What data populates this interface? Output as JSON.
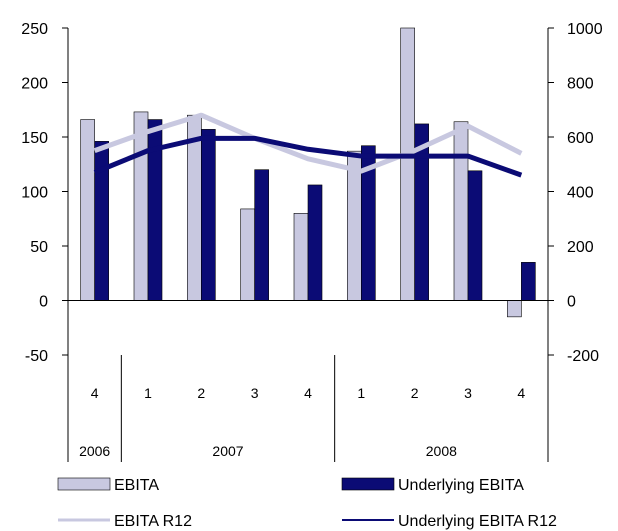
{
  "chart_data": {
    "type": "bar",
    "title": "",
    "xlabel": "",
    "ylabel": "",
    "categories": [
      "4",
      "1",
      "2",
      "3",
      "4",
      "1",
      "2",
      "3",
      "4"
    ],
    "year_groups": [
      {
        "label": "2006",
        "span": 1
      },
      {
        "label": "2007",
        "span": 4
      },
      {
        "label": "2008",
        "span": 4
      }
    ],
    "ylim_left": [
      -50,
      250
    ],
    "left_ticks": [
      250,
      200,
      150,
      100,
      50,
      0,
      -50
    ],
    "ylim_right": [
      -200,
      1000
    ],
    "right_ticks": [
      1000,
      800,
      600,
      400,
      200,
      0,
      -200
    ],
    "grid": false,
    "legend_position": "bottom",
    "series": [
      {
        "name": "EBITA",
        "type": "bar",
        "axis": "left",
        "color": "#c8c8e0",
        "values": [
          166,
          173,
          170,
          84,
          80,
          137,
          250,
          164,
          -15
        ]
      },
      {
        "name": "Underlying EBITA",
        "type": "bar",
        "axis": "left",
        "color": "#0b0b75",
        "values": [
          146,
          166,
          157,
          120,
          106,
          142,
          162,
          119,
          35
        ]
      },
      {
        "name": "EBITA R12",
        "type": "line",
        "axis": "right",
        "color": "#c8c8e0",
        "values": [
          550,
          620,
          680,
          595,
          520,
          475,
          550,
          640,
          540
        ]
      },
      {
        "name": "Underlying EBITA R12",
        "type": "line",
        "axis": "right",
        "color": "#0b0b75",
        "values": [
          470,
          550,
          595,
          595,
          555,
          530,
          530,
          530,
          460
        ]
      }
    ]
  }
}
